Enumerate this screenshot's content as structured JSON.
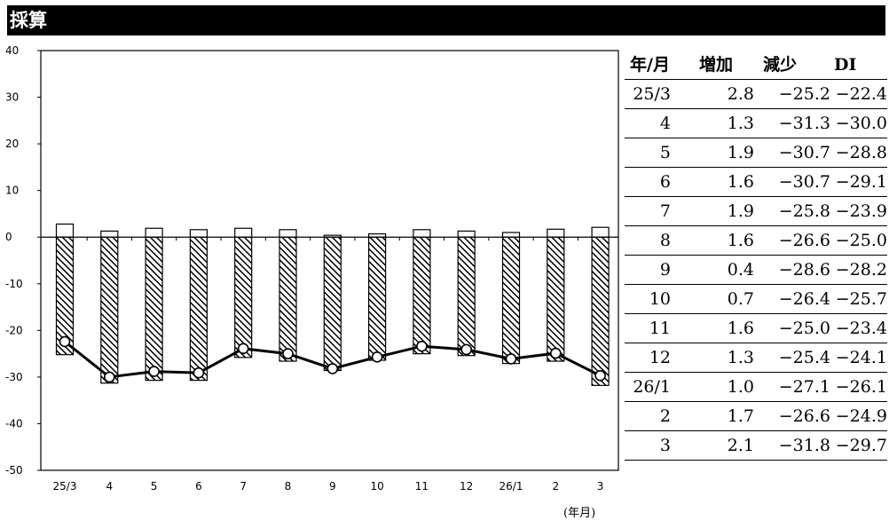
{
  "title": "採算",
  "unit_note": "(年月)",
  "colors": {
    "increase": "#ffffff",
    "decrease_hatch": "#000000",
    "di_line": "#000000",
    "axis": "#000000"
  },
  "chart_data": {
    "type": "bar",
    "categories": [
      "25/3",
      "4",
      "5",
      "6",
      "7",
      "8",
      "9",
      "10",
      "11",
      "12",
      "26/1",
      "2",
      "3"
    ],
    "ylim": [
      -50,
      40
    ],
    "yticks": [
      40,
      30,
      20,
      10,
      0,
      -10,
      -20,
      -30,
      -40,
      -50
    ],
    "series": [
      {
        "name": "増加",
        "type": "bar",
        "style": "white",
        "values": [
          2.8,
          1.3,
          1.9,
          1.6,
          1.9,
          1.6,
          0.4,
          0.7,
          1.6,
          1.3,
          1.0,
          1.7,
          2.1
        ]
      },
      {
        "name": "減少",
        "type": "bar",
        "style": "hatched",
        "values": [
          -25.2,
          -31.3,
          -30.7,
          -30.7,
          -25.8,
          -26.6,
          -28.6,
          -26.4,
          -25.0,
          -25.4,
          -27.1,
          -26.6,
          -31.8
        ]
      },
      {
        "name": "DI",
        "type": "line",
        "marker": "circle",
        "values": [
          -22.4,
          -30.0,
          -28.8,
          -29.1,
          -23.9,
          -25.0,
          -28.2,
          -25.7,
          -23.4,
          -24.1,
          -26.1,
          -24.9,
          -29.7
        ]
      }
    ],
    "xlabel": "(年月)"
  },
  "table": {
    "headers": [
      "年/月",
      "増加",
      "減少",
      "DI"
    ],
    "rows": [
      [
        "25/3",
        "2.8",
        "−25.2",
        "−22.4"
      ],
      [
        "4",
        "1.3",
        "−31.3",
        "−30.0"
      ],
      [
        "5",
        "1.9",
        "−30.7",
        "−28.8"
      ],
      [
        "6",
        "1.6",
        "−30.7",
        "−29.1"
      ],
      [
        "7",
        "1.9",
        "−25.8",
        "−23.9"
      ],
      [
        "8",
        "1.6",
        "−26.6",
        "−25.0"
      ],
      [
        "9",
        "0.4",
        "−28.6",
        "−28.2"
      ],
      [
        "10",
        "0.7",
        "−26.4",
        "−25.7"
      ],
      [
        "11",
        "1.6",
        "−25.0",
        "−23.4"
      ],
      [
        "12",
        "1.3",
        "−25.4",
        "−24.1"
      ],
      [
        "26/1",
        "1.0",
        "−27.1",
        "−26.1"
      ],
      [
        "2",
        "1.7",
        "−26.6",
        "−24.9"
      ],
      [
        "3",
        "2.1",
        "−31.8",
        "−29.7"
      ]
    ]
  }
}
